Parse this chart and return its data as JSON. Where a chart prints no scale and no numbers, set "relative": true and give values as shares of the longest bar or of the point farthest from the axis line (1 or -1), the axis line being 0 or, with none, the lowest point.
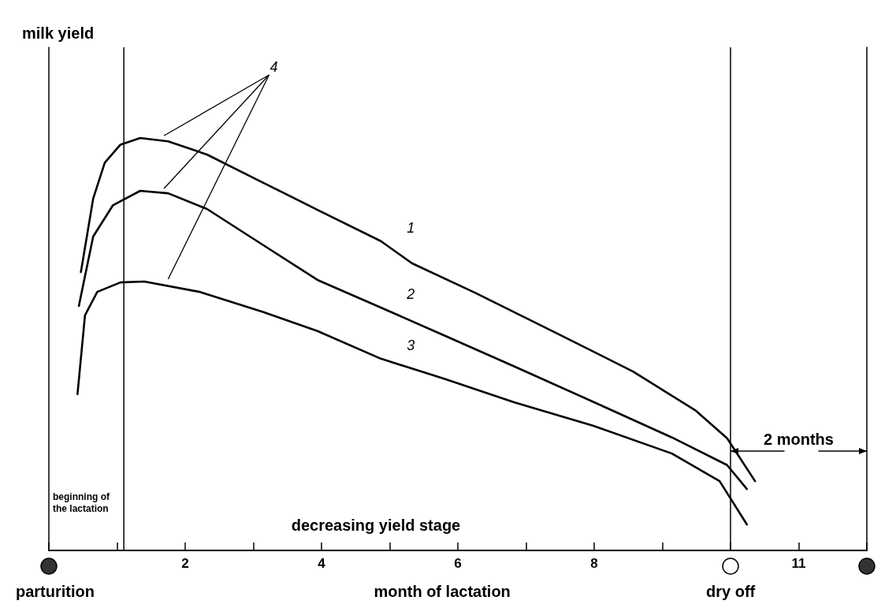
{
  "chart_data": {
    "type": "line",
    "relative": true,
    "xlabel": "month of lactation",
    "x": [
      0.47,
      0.65,
      0.82,
      1.05,
      1.34,
      1.75,
      2.32,
      3.02,
      3.94,
      4.87,
      5.33,
      6.25,
      7.41,
      8.57,
      9.49,
      9.95,
      10.36
    ],
    "series": [
      {
        "name": "1",
        "color": "#000000",
        "values": [
          0.675,
          0.853,
          0.94,
          0.984,
          1,
          0.992,
          0.96,
          0.902,
          0.826,
          0.75,
          0.696,
          0.625,
          0.53,
          0.434,
          0.339,
          0.272,
          0.168
        ]
      },
      {
        "name": "2",
        "color": "#000000",
        "x": [
          0.44,
          0.65,
          0.94,
          1.34,
          1.75,
          2.32,
          3.13,
          3.94,
          4.87,
          5.79,
          6.83,
          7.99,
          9.14,
          9.95,
          10.24
        ],
        "values": [
          0.593,
          0.761,
          0.837,
          0.872,
          0.866,
          0.828,
          0.742,
          0.656,
          0.589,
          0.522,
          0.446,
          0.36,
          0.274,
          0.207,
          0.149
        ]
      },
      {
        "name": "3",
        "color": "#000000",
        "x": [
          0.42,
          0.53,
          0.71,
          1.05,
          1.4,
          2.21,
          3.13,
          3.94,
          4.87,
          5.79,
          6.83,
          7.99,
          9.14,
          9.84,
          10.24
        ],
        "values": [
          0.379,
          0.57,
          0.627,
          0.65,
          0.652,
          0.627,
          0.579,
          0.532,
          0.465,
          0.417,
          0.359,
          0.302,
          0.235,
          0.168,
          0.063
        ]
      }
    ],
    "xlim": [
      0,
      12
    ],
    "xticks": [
      {
        "value": 0,
        "label": null
      },
      {
        "value": 1,
        "label": null
      },
      2,
      {
        "value": 3,
        "label": null
      },
      4,
      {
        "value": 5,
        "label": null
      },
      6,
      {
        "value": 7,
        "label": null
      },
      8,
      {
        "value": 9,
        "label": null
      },
      {
        "value": 10,
        "label": null
      },
      11,
      {
        "value": 12,
        "label": null
      }
    ],
    "ref_lines": [
      {
        "axis": "x",
        "value": 1.1
      },
      {
        "axis": "x",
        "value": 10
      }
    ],
    "annotations": [
      "milk yield",
      "4",
      "2 months",
      "parturition",
      "dry off",
      "beginning of the lactation",
      "decreasing yield stage"
    ],
    "grid": false,
    "marker": "none",
    "line_style": "solid",
    "legend": false
  }
}
